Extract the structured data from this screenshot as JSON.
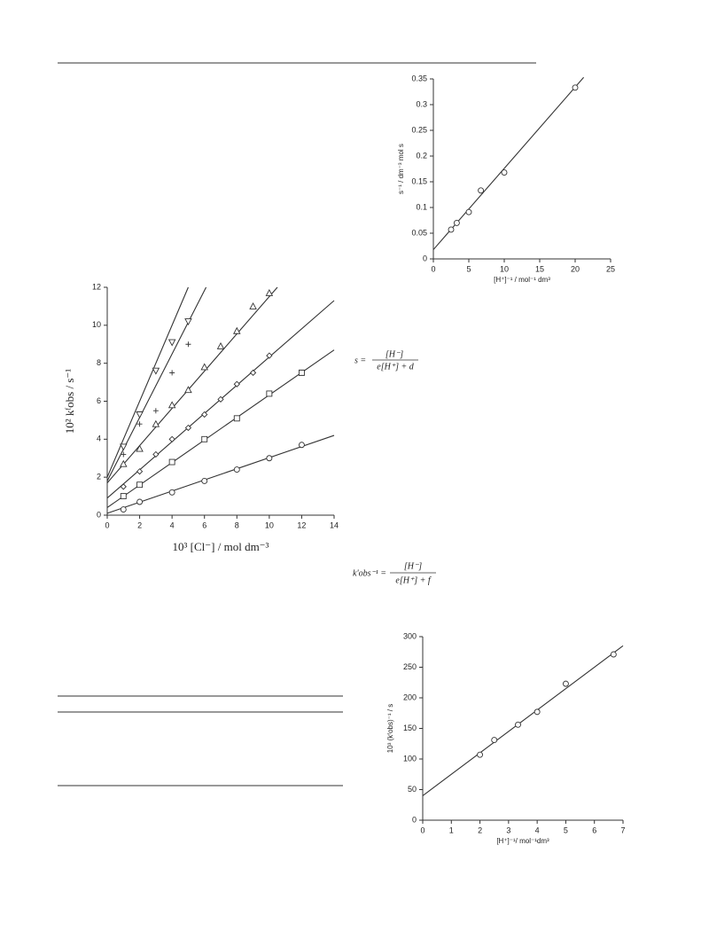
{
  "chart_data": [
    {
      "type": "scatter",
      "x_label": "[H⁺]⁻¹ / mol⁻¹ dm³",
      "y_label": "s⁻¹ / dm⁻³ mol s",
      "xlim": [
        0,
        25
      ],
      "xticks": [
        0,
        5,
        10,
        15,
        20,
        25
      ],
      "ylim": [
        0,
        0.35
      ],
      "yticks": [
        0,
        0.05,
        0.1,
        0.15,
        0.2,
        0.25,
        0.3,
        0.35
      ],
      "series": [
        {
          "marker": "circle",
          "color": "#333",
          "x": [
            2.5,
            3.3,
            5,
            6.7,
            10,
            20
          ],
          "values": [
            0.057,
            0.07,
            0.091,
            0.133,
            0.168,
            0.333
          ],
          "fit": {
            "x": [
              0,
              21.2
            ],
            "values": [
              0.018,
              0.353
            ]
          }
        }
      ]
    },
    {
      "type": "scatter",
      "x_label": "10³ [Cl⁻] / mol dm⁻³",
      "y_label": "10² kᶠobs / s⁻¹",
      "xlim": [
        0,
        14
      ],
      "xticks": [
        0,
        2,
        4,
        6,
        8,
        10,
        12,
        14
      ],
      "ylim": [
        0,
        12
      ],
      "yticks": [
        0,
        2,
        4,
        6,
        8,
        10,
        12
      ],
      "series": [
        {
          "marker": "circle",
          "color": "#333",
          "x": [
            1,
            2,
            4,
            6,
            8,
            10,
            12
          ],
          "values": [
            0.3,
            0.7,
            1.2,
            1.8,
            2.4,
            3.0,
            3.7
          ],
          "fit": {
            "x": [
              0,
              14
            ],
            "values": [
              0.1,
              4.2
            ]
          }
        },
        {
          "marker": "square",
          "color": "#333",
          "x": [
            1,
            2,
            4,
            6,
            8,
            10,
            12
          ],
          "values": [
            1.0,
            1.6,
            2.8,
            4.0,
            5.1,
            6.4,
            7.5
          ],
          "fit": {
            "x": [
              0,
              14
            ],
            "values": [
              0.4,
              8.7
            ]
          }
        },
        {
          "marker": "diamond",
          "color": "#333",
          "x": [
            1,
            2,
            3,
            4,
            5,
            6,
            7,
            8,
            9,
            10
          ],
          "values": [
            1.5,
            2.3,
            3.2,
            4.0,
            4.6,
            5.3,
            6.1,
            6.9,
            7.5,
            8.4
          ],
          "fit": {
            "x": [
              0,
              14
            ],
            "values": [
              0.9,
              11.3
            ]
          }
        },
        {
          "marker": "triangle",
          "color": "#333",
          "x": [
            1,
            2,
            3,
            4,
            5,
            6,
            7,
            8,
            9,
            10
          ],
          "values": [
            2.7,
            3.5,
            4.8,
            5.8,
            6.6,
            7.8,
            8.9,
            9.7,
            11.0,
            11.7
          ],
          "fit": {
            "x": [
              0,
              10.5
            ],
            "values": [
              1.7,
              12
            ]
          }
        },
        {
          "marker": "plus",
          "color": "#333",
          "x": [
            1,
            2,
            3,
            4,
            5
          ],
          "values": [
            3.2,
            4.8,
            5.5,
            7.5,
            9.0
          ],
          "fit": {
            "x": [
              0,
              6.1
            ],
            "values": [
              1.8,
              12
            ]
          }
        },
        {
          "marker": "triangle-down",
          "color": "#333",
          "x": [
            1,
            2,
            3,
            4,
            5
          ],
          "values": [
            3.6,
            5.3,
            7.6,
            9.1,
            10.2
          ],
          "fit": {
            "x": [
              0,
              5.0
            ],
            "values": [
              2.0,
              12
            ]
          }
        }
      ]
    },
    {
      "type": "scatter",
      "x_label": "[H⁺]⁻¹/ mol⁻¹dm³",
      "y_label": "10³ (kᶠobs)⁻¹ / s",
      "xlim": [
        0,
        7
      ],
      "xticks": [
        0,
        1,
        2,
        3,
        4,
        5,
        6,
        7
      ],
      "ylim": [
        0,
        300
      ],
      "yticks": [
        0,
        50,
        100,
        150,
        200,
        250,
        300
      ],
      "series": [
        {
          "marker": "circle",
          "color": "#333",
          "x": [
            2,
            2.5,
            3.33,
            4,
            5,
            6.67
          ],
          "values": [
            107,
            131,
            156,
            177,
            223,
            271
          ],
          "fit": {
            "x": [
              0,
              7
            ],
            "values": [
              40,
              285
            ]
          }
        }
      ]
    }
  ],
  "equations": [
    {
      "lhs": "s =",
      "numerator": "[H⁻]",
      "denominator": "e[H⁺] + d"
    },
    {
      "lhs": "k'obs⁻¹ =",
      "numerator": "[H⁻]",
      "denominator": "e[H⁺] + f"
    }
  ]
}
